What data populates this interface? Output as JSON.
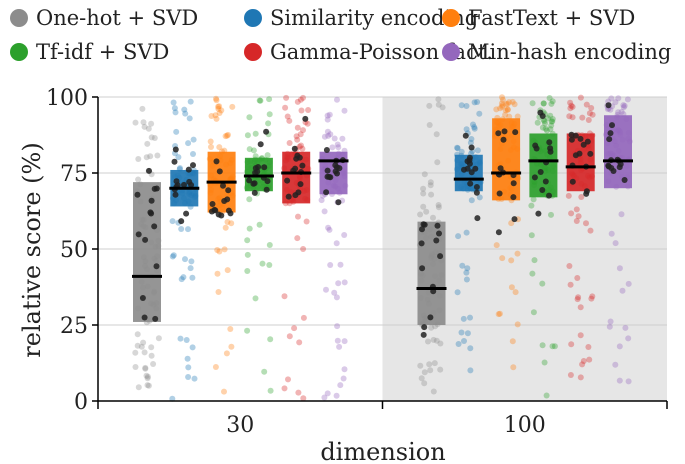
{
  "chart_data": {
    "type": "box",
    "xlabel": "dimension",
    "ylabel": "relative score (%)",
    "categories": [
      "30",
      "100"
    ],
    "ylim": [
      0,
      100
    ],
    "yticks": [
      0,
      25,
      50,
      75,
      100
    ],
    "grid": true,
    "legend_position": "top",
    "shaded_category": "100",
    "series": [
      {
        "name": "One-hot + SVD",
        "color": "#8c8c8c",
        "boxes": [
          {
            "q1": 26,
            "median": 41,
            "q3": 72
          },
          {
            "q1": 25,
            "median": 37,
            "q3": 59
          }
        ]
      },
      {
        "name": "Similarity encoding",
        "color": "#1f77b4",
        "boxes": [
          {
            "q1": 64,
            "median": 70,
            "q3": 76
          },
          {
            "q1": 69,
            "median": 73,
            "q3": 81
          }
        ]
      },
      {
        "name": "FastText + SVD",
        "color": "#ff7f0e",
        "boxes": [
          {
            "q1": 62,
            "median": 72,
            "q3": 82
          },
          {
            "q1": 66,
            "median": 75,
            "q3": 93
          }
        ]
      },
      {
        "name": "Tf-idf + SVD",
        "color": "#2ca02c",
        "boxes": [
          {
            "q1": 69,
            "median": 74,
            "q3": 80
          },
          {
            "q1": 67,
            "median": 79,
            "q3": 88
          }
        ]
      },
      {
        "name": "Gamma-Poisson fact.",
        "color": "#d62728",
        "boxes": [
          {
            "q1": 65,
            "median": 75,
            "q3": 82
          },
          {
            "q1": 69,
            "median": 77,
            "q3": 88
          }
        ]
      },
      {
        "name": "Min-hash encoding",
        "color": "#9467bd",
        "boxes": [
          {
            "q1": 68,
            "median": 79,
            "q3": 82
          },
          {
            "q1": 70,
            "median": 79,
            "q3": 94
          }
        ]
      }
    ]
  }
}
